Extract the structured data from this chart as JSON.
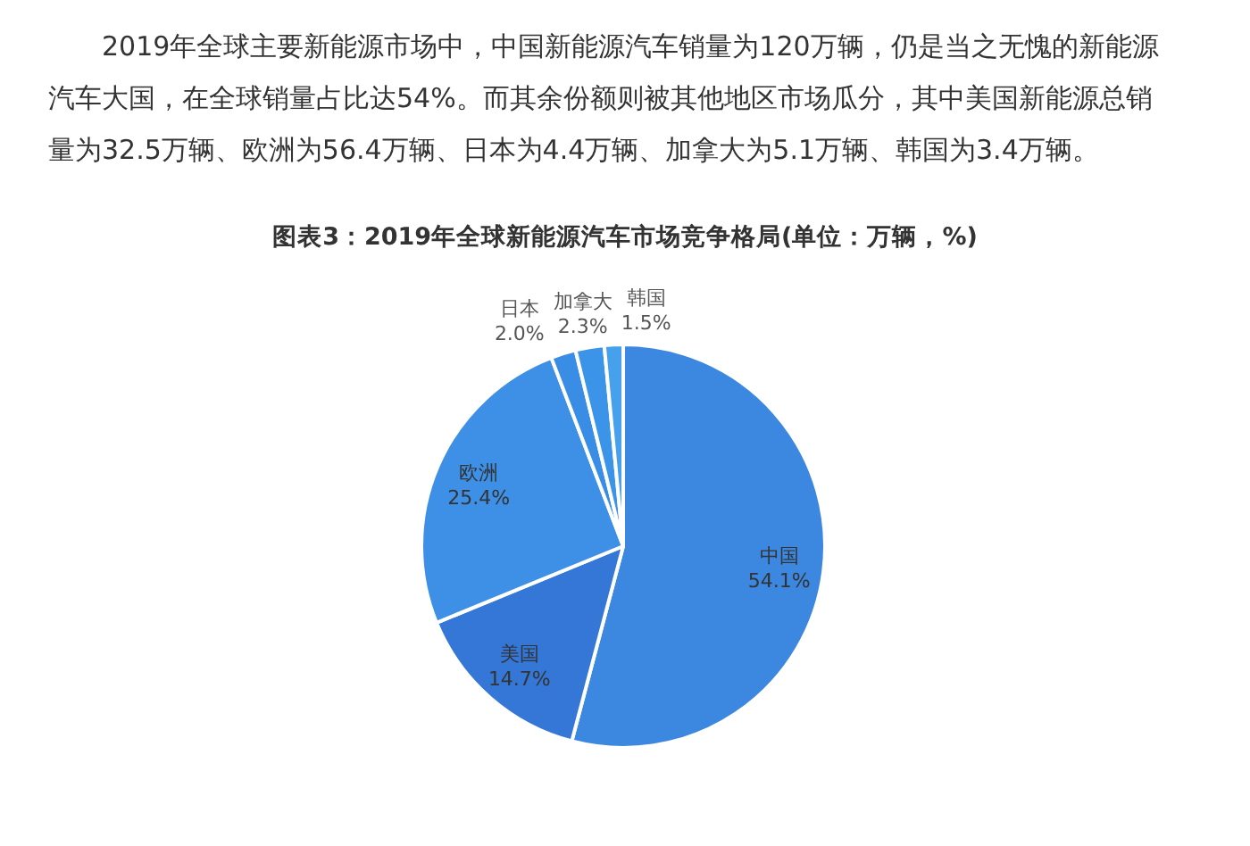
{
  "chart_data": {
    "type": "pie",
    "title": "图表3：2019年全球新能源汽车市场竞争格局(单位：万辆，%)",
    "annotations": [
      "2019年全球主要新能源市场中，中国新能源汽车销量为120万辆，仍是当之无愧的新能源汽车大国，在全球销量占比达54%。而其余份额则被其他地区市场瓜分，其中美国新能源总销量为32.5万辆、欧洲为56.4万辆、日本为4.4万辆、加拿大为5.1万辆、韩国为3.4万辆。"
    ],
    "categories": [
      "中国",
      "美国",
      "欧洲",
      "日本",
      "加拿大",
      "韩国"
    ],
    "values": [
      54.1,
      14.7,
      25.4,
      2.0,
      2.3,
      1.5
    ],
    "value_labels": [
      "54.1%",
      "14.7%",
      "25.4%",
      "2.0%",
      "2.3%",
      "1.5%"
    ],
    "colors": [
      "#3c87df",
      "#3577d6",
      "#3e90e6",
      "#3a8de5",
      "#3c94e8",
      "#47a0eb"
    ]
  }
}
